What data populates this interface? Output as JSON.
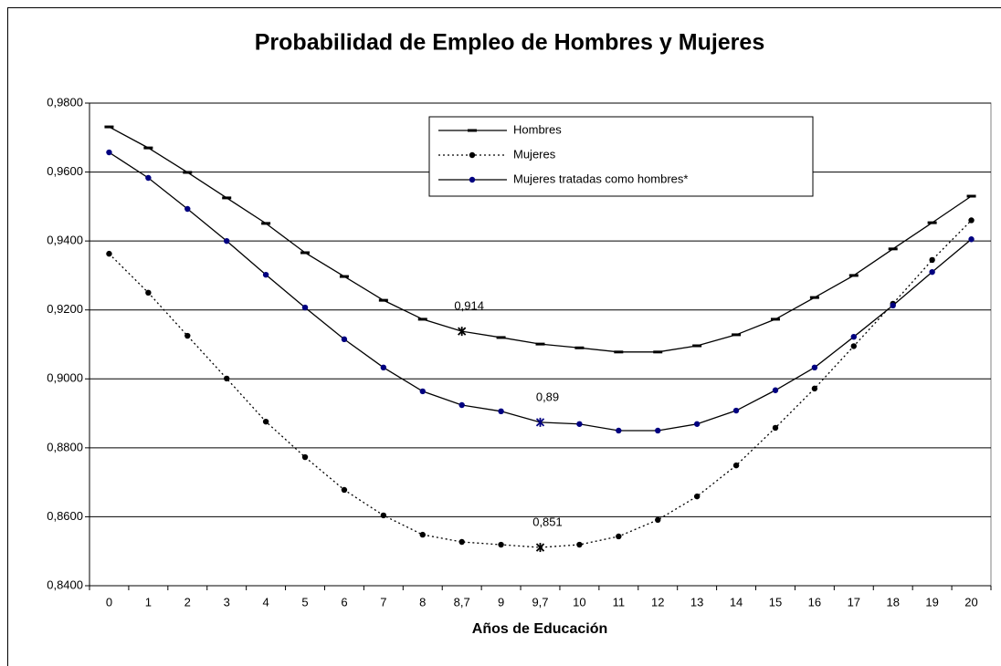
{
  "chart_data": {
    "type": "line",
    "title": "Probabilidad de Empleo de Hombres y Mujeres",
    "x_label": "Años de Educación",
    "categories": [
      "0",
      "1",
      "2",
      "3",
      "4",
      "5",
      "6",
      "7",
      "8",
      "8,7",
      "9",
      "9,7",
      "10",
      "11",
      "12",
      "13",
      "14",
      "15",
      "16",
      "17",
      "18",
      "19",
      "20"
    ],
    "ylim": [
      0.84,
      0.98
    ],
    "yticks": [
      {
        "value": 0.84,
        "label": "0,8400"
      },
      {
        "value": 0.86,
        "label": "0,8600"
      },
      {
        "value": 0.88,
        "label": "0,8800"
      },
      {
        "value": 0.9,
        "label": "0,9000"
      },
      {
        "value": 0.92,
        "label": "0,9200"
      },
      {
        "value": 0.94,
        "label": "0,9400"
      },
      {
        "value": 0.96,
        "label": "0,9600"
      },
      {
        "value": 0.98,
        "label": "0,9800"
      }
    ],
    "grid": true,
    "legend": "top",
    "series": [
      {
        "name": "Hombres",
        "color": "#000000",
        "line_style": "solid",
        "marker": "dash",
        "values": [
          0.9731,
          0.967,
          0.9599,
          0.9525,
          0.9451,
          0.9366,
          0.9297,
          0.9228,
          0.9173,
          0.9138,
          0.912,
          0.9101,
          0.909,
          0.9078,
          0.9078,
          0.9096,
          0.9128,
          0.9173,
          0.9236,
          0.93,
          0.9377,
          0.9453,
          0.953
        ],
        "value_labels": [
          null,
          null,
          null,
          null,
          null,
          null,
          null,
          null,
          null,
          "0,914",
          null,
          null,
          null,
          null,
          null,
          null,
          null,
          null,
          null,
          null,
          null,
          null,
          null
        ]
      },
      {
        "name": "Mujeres",
        "color": "#000000",
        "line_style": "dotted",
        "marker": "dot",
        "values": [
          0.9363,
          0.925,
          0.9125,
          0.9001,
          0.8876,
          0.8773,
          0.8678,
          0.8604,
          0.8548,
          0.8527,
          0.8519,
          0.8511,
          0.8519,
          0.8543,
          0.8591,
          0.8659,
          0.8749,
          0.8858,
          0.8972,
          0.9095,
          0.9218,
          0.9345,
          0.946
        ],
        "value_labels": [
          null,
          null,
          null,
          null,
          null,
          null,
          null,
          null,
          null,
          null,
          null,
          "0,851",
          null,
          null,
          null,
          null,
          null,
          null,
          null,
          null,
          null,
          null,
          null
        ]
      },
      {
        "name": "Mujeres tratadas como hombres*",
        "color": "#000080",
        "line_style": "solid",
        "marker": "dot",
        "values": [
          0.9657,
          0.9583,
          0.9493,
          0.94,
          0.9302,
          0.9207,
          0.9115,
          0.9033,
          0.8964,
          0.8924,
          0.8906,
          0.8874,
          0.8869,
          0.885,
          0.885,
          0.8869,
          0.8908,
          0.8967,
          0.9033,
          0.9122,
          0.9213,
          0.931,
          0.9405
        ],
        "value_labels": [
          null,
          null,
          null,
          null,
          null,
          null,
          null,
          null,
          null,
          null,
          null,
          "0,89",
          null,
          null,
          null,
          null,
          null,
          null,
          null,
          null,
          null,
          null,
          null
        ]
      }
    ]
  }
}
